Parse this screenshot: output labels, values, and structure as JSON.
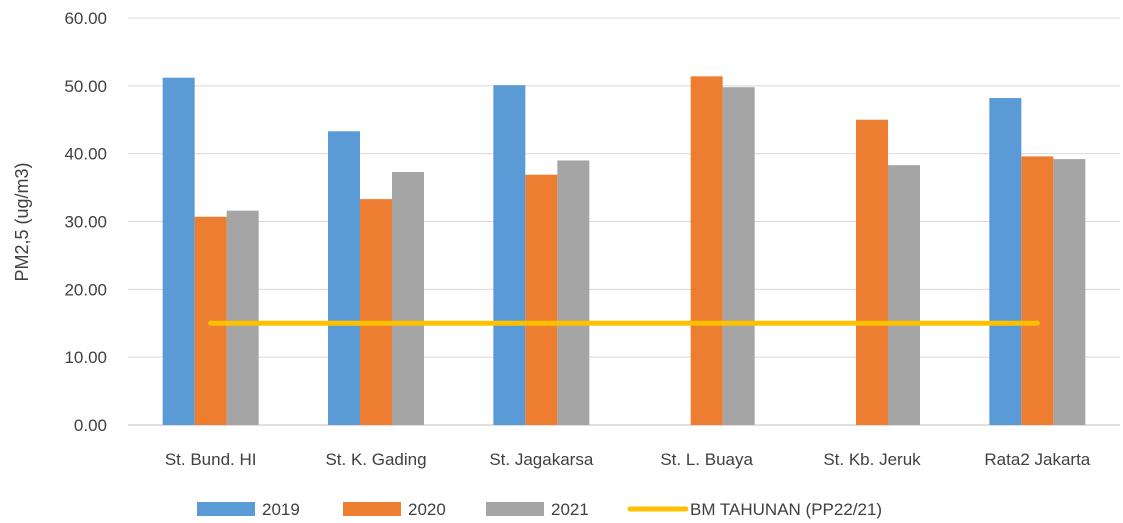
{
  "chart_data": {
    "type": "bar",
    "title": "",
    "xlabel": "",
    "ylabel": "PM2,5 (ug/m3)",
    "ylim": [
      0,
      60
    ],
    "yticks": [
      "0.00",
      "10.00",
      "20.00",
      "30.00",
      "40.00",
      "50.00",
      "60.00"
    ],
    "grid": true,
    "legend_position": "bottom",
    "categories": [
      "St. Bund. HI",
      "St. K. Gading",
      "St. Jagakarsa",
      "St. L. Buaya",
      "St. Kb. Jeruk",
      "Rata2 Jakarta"
    ],
    "series": [
      {
        "name": "2019",
        "color": "#5B9BD5",
        "values": [
          51.2,
          43.3,
          50.1,
          null,
          null,
          48.2
        ]
      },
      {
        "name": "2020",
        "color": "#ED7D31",
        "values": [
          30.7,
          33.3,
          36.9,
          51.4,
          45.0,
          39.6
        ]
      },
      {
        "name": "2021",
        "color": "#A5A5A5",
        "values": [
          31.6,
          37.3,
          39.0,
          49.8,
          38.3,
          39.2
        ]
      }
    ],
    "reference_line": {
      "name": "BM TAHUNAN (PP22/21)",
      "color": "#FFC000",
      "value": 15
    }
  }
}
